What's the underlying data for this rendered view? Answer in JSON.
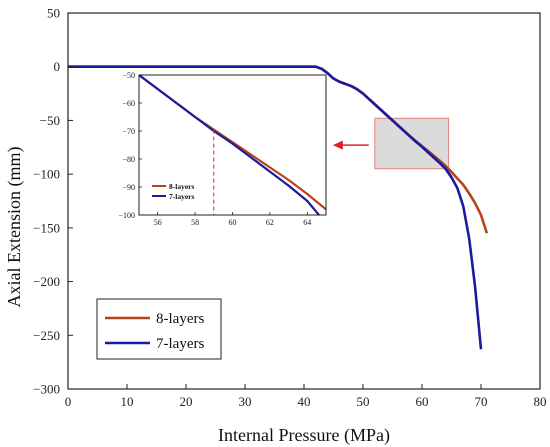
{
  "chart_data": {
    "type": "line",
    "xlabel": "Internal Pressure (MPa)",
    "ylabel": "Axial Extension (mm)",
    "xlim": [
      0,
      80
    ],
    "ylim": [
      -300,
      50
    ],
    "xticks": [
      0,
      10,
      20,
      30,
      40,
      50,
      60,
      70,
      80
    ],
    "yticks": [
      50,
      0,
      -50,
      -100,
      -150,
      -200,
      -250,
      -300
    ],
    "grid": false,
    "legend_position": "bottom-left",
    "series": [
      {
        "name": "8-layers",
        "color": "#b5441a",
        "points": [
          [
            0,
            0
          ],
          [
            10,
            0
          ],
          [
            20,
            0
          ],
          [
            30,
            0
          ],
          [
            40,
            0
          ],
          [
            42,
            0
          ],
          [
            43,
            -2
          ],
          [
            44,
            -6
          ],
          [
            45,
            -11
          ],
          [
            46,
            -14
          ],
          [
            47,
            -16
          ],
          [
            48,
            -18
          ],
          [
            49,
            -21
          ],
          [
            50,
            -25
          ],
          [
            51,
            -30
          ],
          [
            52,
            -35
          ],
          [
            53,
            -40
          ],
          [
            54,
            -45
          ],
          [
            55,
            -50
          ],
          [
            56,
            -55
          ],
          [
            57,
            -60
          ],
          [
            58,
            -65
          ],
          [
            59,
            -69.5
          ],
          [
            60,
            -74
          ],
          [
            61,
            -78.5
          ],
          [
            62,
            -83
          ],
          [
            63,
            -87.5
          ],
          [
            64,
            -92.5
          ],
          [
            65,
            -98
          ],
          [
            66,
            -104
          ],
          [
            67,
            -110
          ],
          [
            68,
            -118
          ],
          [
            69,
            -127
          ],
          [
            70,
            -138
          ],
          [
            71,
            -155
          ]
        ]
      },
      {
        "name": "7-layers",
        "color": "#1c1aa0",
        "points": [
          [
            0,
            0
          ],
          [
            10,
            0
          ],
          [
            20,
            0
          ],
          [
            30,
            0
          ],
          [
            40,
            0
          ],
          [
            42,
            0
          ],
          [
            43,
            -2
          ],
          [
            44,
            -6
          ],
          [
            45,
            -11
          ],
          [
            46,
            -14
          ],
          [
            47,
            -16
          ],
          [
            48,
            -18
          ],
          [
            49,
            -21
          ],
          [
            50,
            -25
          ],
          [
            51,
            -30
          ],
          [
            52,
            -35
          ],
          [
            53,
            -40
          ],
          [
            54,
            -45
          ],
          [
            55,
            -50
          ],
          [
            56,
            -55
          ],
          [
            57,
            -60
          ],
          [
            58,
            -65
          ],
          [
            59,
            -70
          ],
          [
            60,
            -74.5
          ],
          [
            61,
            -79.5
          ],
          [
            62,
            -84.5
          ],
          [
            63,
            -89.5
          ],
          [
            64,
            -95
          ],
          [
            65,
            -103
          ],
          [
            66,
            -113
          ],
          [
            67,
            -130
          ],
          [
            68,
            -160
          ],
          [
            69,
            -205
          ],
          [
            70,
            -263
          ]
        ]
      }
    ],
    "inset": {
      "xlim": [
        55,
        65
      ],
      "ylim": [
        -100,
        -50
      ],
      "xticks": [
        56,
        58,
        60,
        62,
        64
      ],
      "yticks": [
        -50,
        -60,
        -70,
        -80,
        -90,
        -100
      ],
      "marker_x": 59,
      "marker_color": "#e02020",
      "zoom_region": {
        "x": [
          52,
          64.5
        ],
        "y": [
          -95,
          -48
        ]
      },
      "legend_position": "bottom-left"
    }
  }
}
